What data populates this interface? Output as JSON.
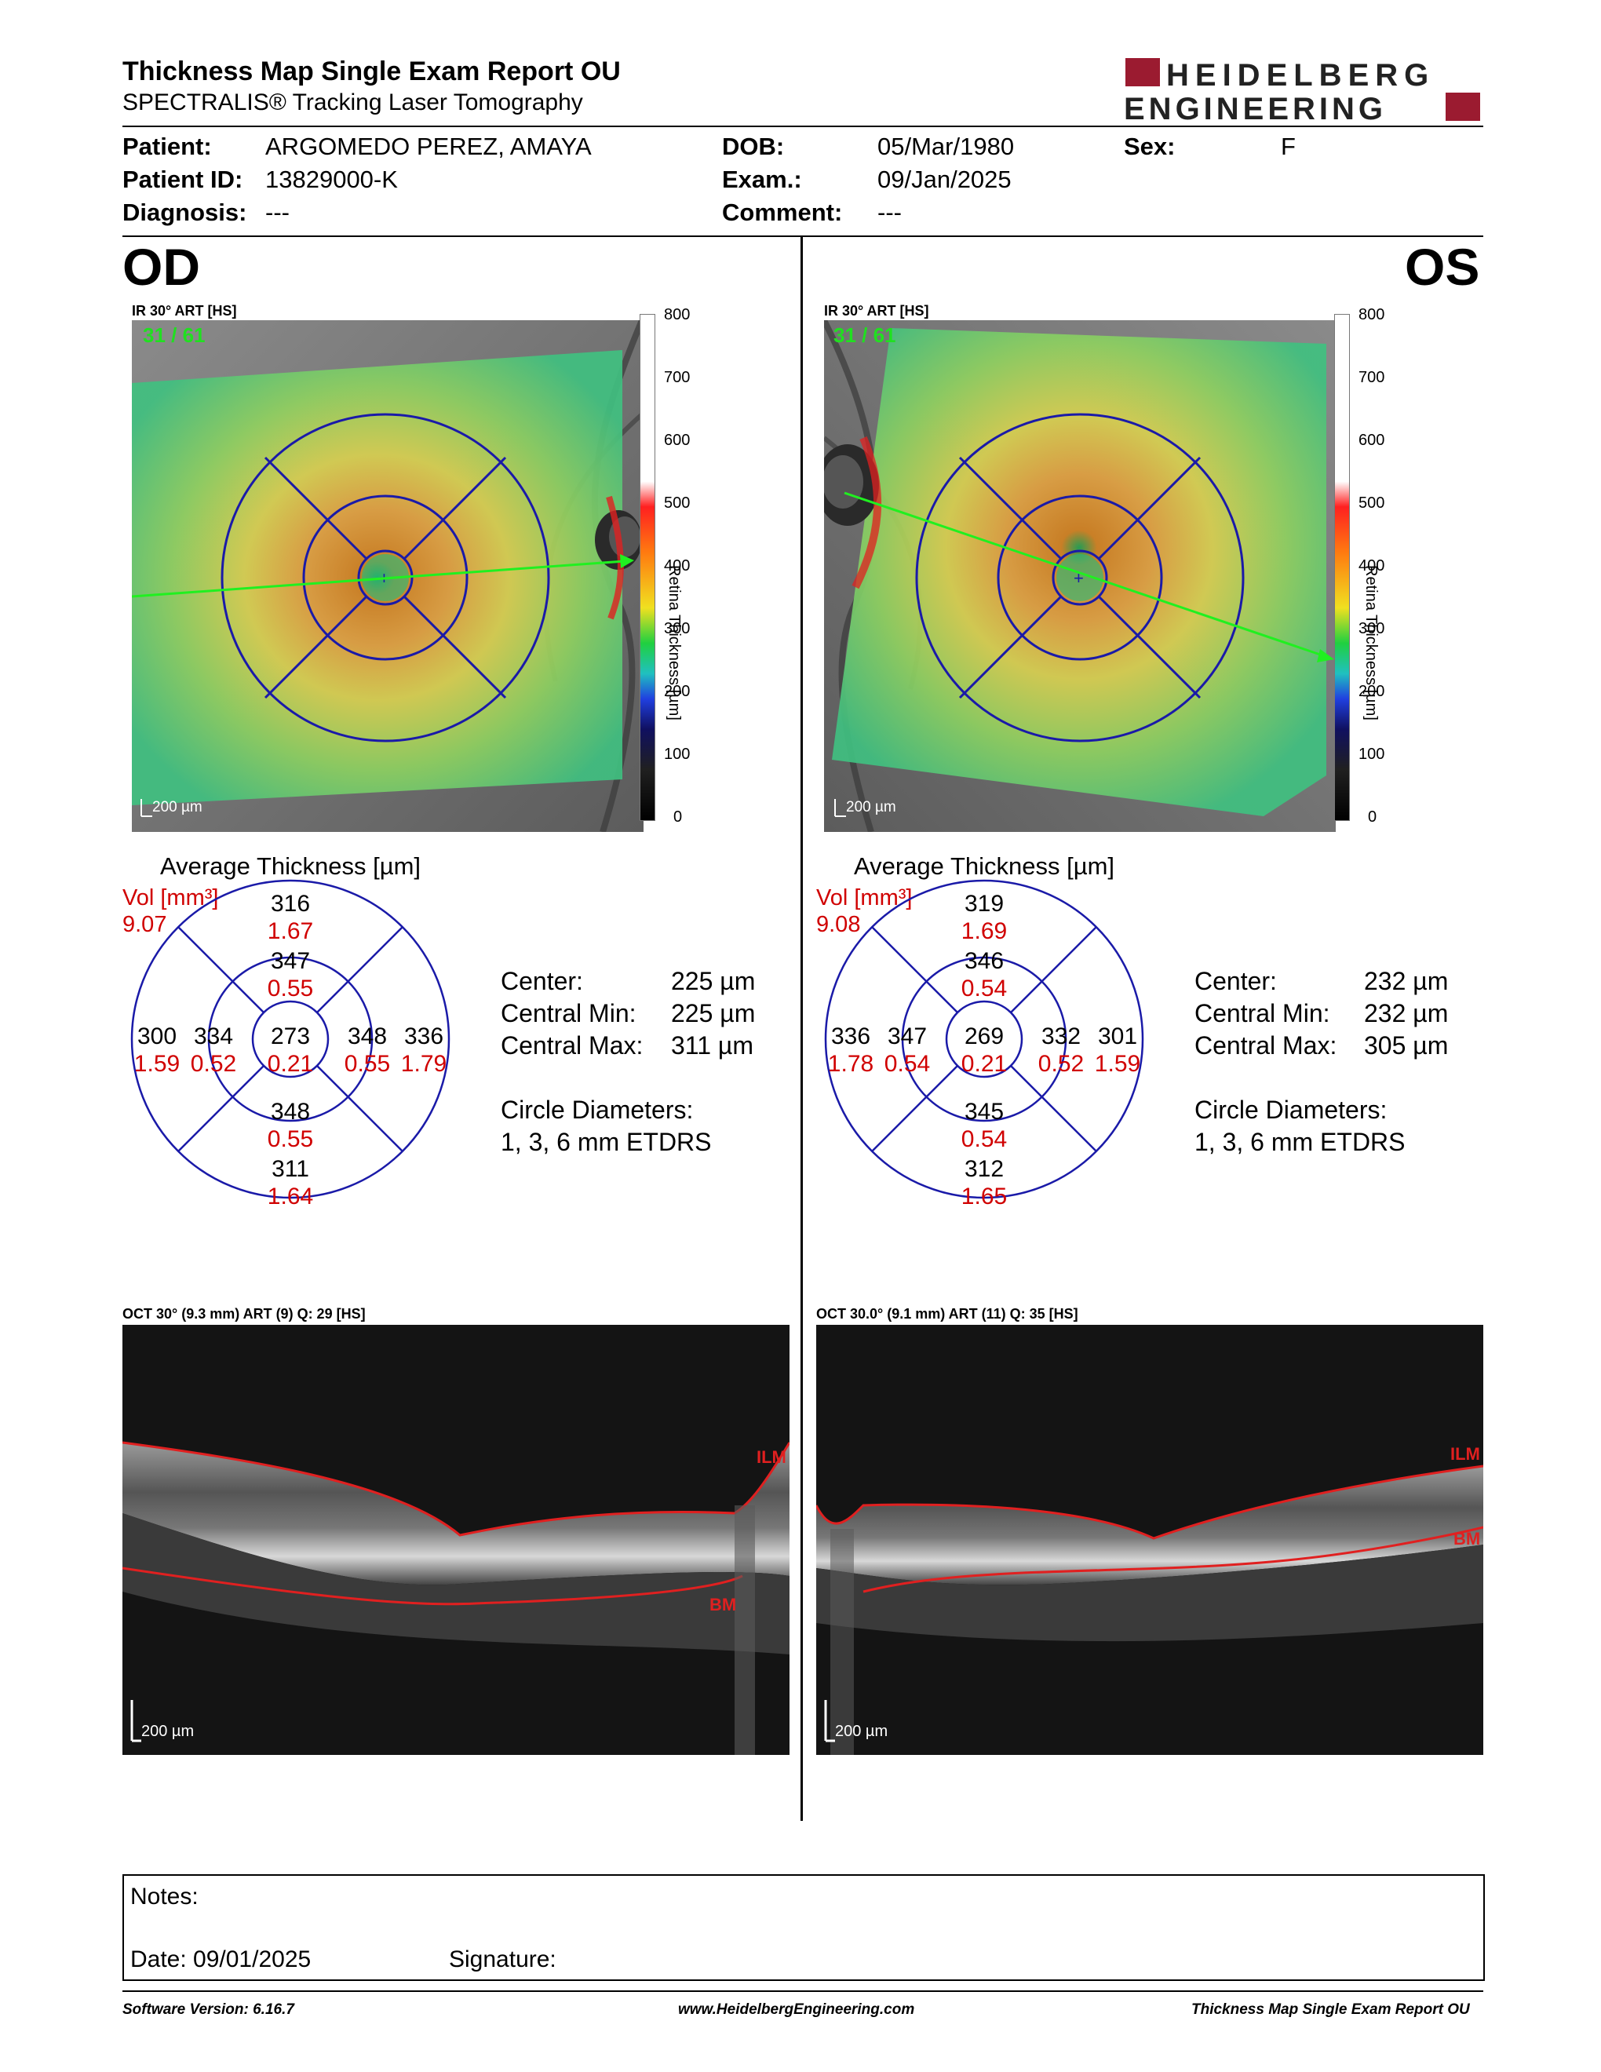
{
  "header": {
    "title": "Thickness Map Single Exam Report OU",
    "subtitle": "SPECTRALIS® Tracking Laser Tomography",
    "logo_line1": "HEIDELBERG",
    "logo_line2": "ENGINEERING"
  },
  "patient": {
    "patient_label": "Patient:",
    "patient_value": "ARGOMEDO PEREZ, AMAYA",
    "id_label": "Patient ID:",
    "id_value": "13829000-K",
    "diagnosis_label": "Diagnosis:",
    "diagnosis_value": "---",
    "dob_label": "DOB:",
    "dob_value": "05/Mar/1980",
    "exam_label": "Exam.:",
    "exam_value": "09/Jan/2025",
    "comment_label": "Comment:",
    "comment_value": "---",
    "sex_label": "Sex:",
    "sex_value": "F"
  },
  "colorbar": {
    "ticks": [
      "800",
      "700",
      "600",
      "500",
      "400",
      "300",
      "200",
      "100",
      "0"
    ],
    "label": "Retina Thickness [µm]"
  },
  "od": {
    "eye": "OD",
    "ir_title": "IR 30° ART [HS]",
    "frames": "31 / 61",
    "scale": "200 µm",
    "avg_title": "Average Thickness [µm]",
    "vol_label": "Vol [mm³]",
    "vol_value": "9.07",
    "grid": {
      "center": [
        "273",
        "0.21"
      ],
      "inner_top": [
        "347",
        "0.55"
      ],
      "inner_bottom": [
        "348",
        "0.55"
      ],
      "inner_left": [
        "334",
        "0.52"
      ],
      "inner_right": [
        "348",
        "0.55"
      ],
      "outer_top": [
        "316",
        "1.67"
      ],
      "outer_bottom": [
        "311",
        "1.64"
      ],
      "outer_left": [
        "300",
        "1.59"
      ],
      "outer_right": [
        "336",
        "1.79"
      ]
    },
    "center_label": "Center:",
    "center_value": "225 µm",
    "cmin_label": "Central Min:",
    "cmin_value": "225 µm",
    "cmax_label": "Central Max:",
    "cmax_value": "311 µm",
    "diam_label": "Circle Diameters:",
    "diam_value": "1, 3, 6 mm ETDRS",
    "oct_title": "OCT 30° (9.3 mm) ART (9) Q: 29 [HS]",
    "oct_scale": "200 µm",
    "ilm": "ILM",
    "bm": "BM"
  },
  "os": {
    "eye": "OS",
    "ir_title": "IR 30° ART [HS]",
    "frames": "31 / 61",
    "scale": "200 µm",
    "avg_title": "Average Thickness [µm]",
    "vol_label": "Vol [mm³]",
    "vol_value": "9.08",
    "grid": {
      "center": [
        "269",
        "0.21"
      ],
      "inner_top": [
        "346",
        "0.54"
      ],
      "inner_bottom": [
        "345",
        "0.54"
      ],
      "inner_left": [
        "347",
        "0.54"
      ],
      "inner_right": [
        "332",
        "0.52"
      ],
      "outer_top": [
        "319",
        "1.69"
      ],
      "outer_bottom": [
        "312",
        "1.65"
      ],
      "outer_left": [
        "336",
        "1.78"
      ],
      "outer_right": [
        "301",
        "1.59"
      ]
    },
    "center_label": "Center:",
    "center_value": "232 µm",
    "cmin_label": "Central Min:",
    "cmin_value": "232 µm",
    "cmax_label": "Central Max:",
    "cmax_value": "305 µm",
    "diam_label": "Circle Diameters:",
    "diam_value": "1, 3, 6 mm ETDRS",
    "oct_title": "OCT 30.0° (9.1 mm) ART (11) Q: 35 [HS]",
    "oct_scale": "200 µm",
    "ilm": "ILM",
    "bm": "BM"
  },
  "notes": {
    "notes_label": "Notes:",
    "date_label": "Date: 09/01/2025",
    "signature_label": "Signature:"
  },
  "footer": {
    "software": "Software Version: 6.16.7",
    "website": "www.HeidelbergEngineering.com",
    "report": "Thickness Map Single Exam Report OU"
  },
  "colors": {
    "brand_red": "#9b1b30",
    "grid_blue": "#1a1aa8",
    "value_red": "#d00000"
  }
}
